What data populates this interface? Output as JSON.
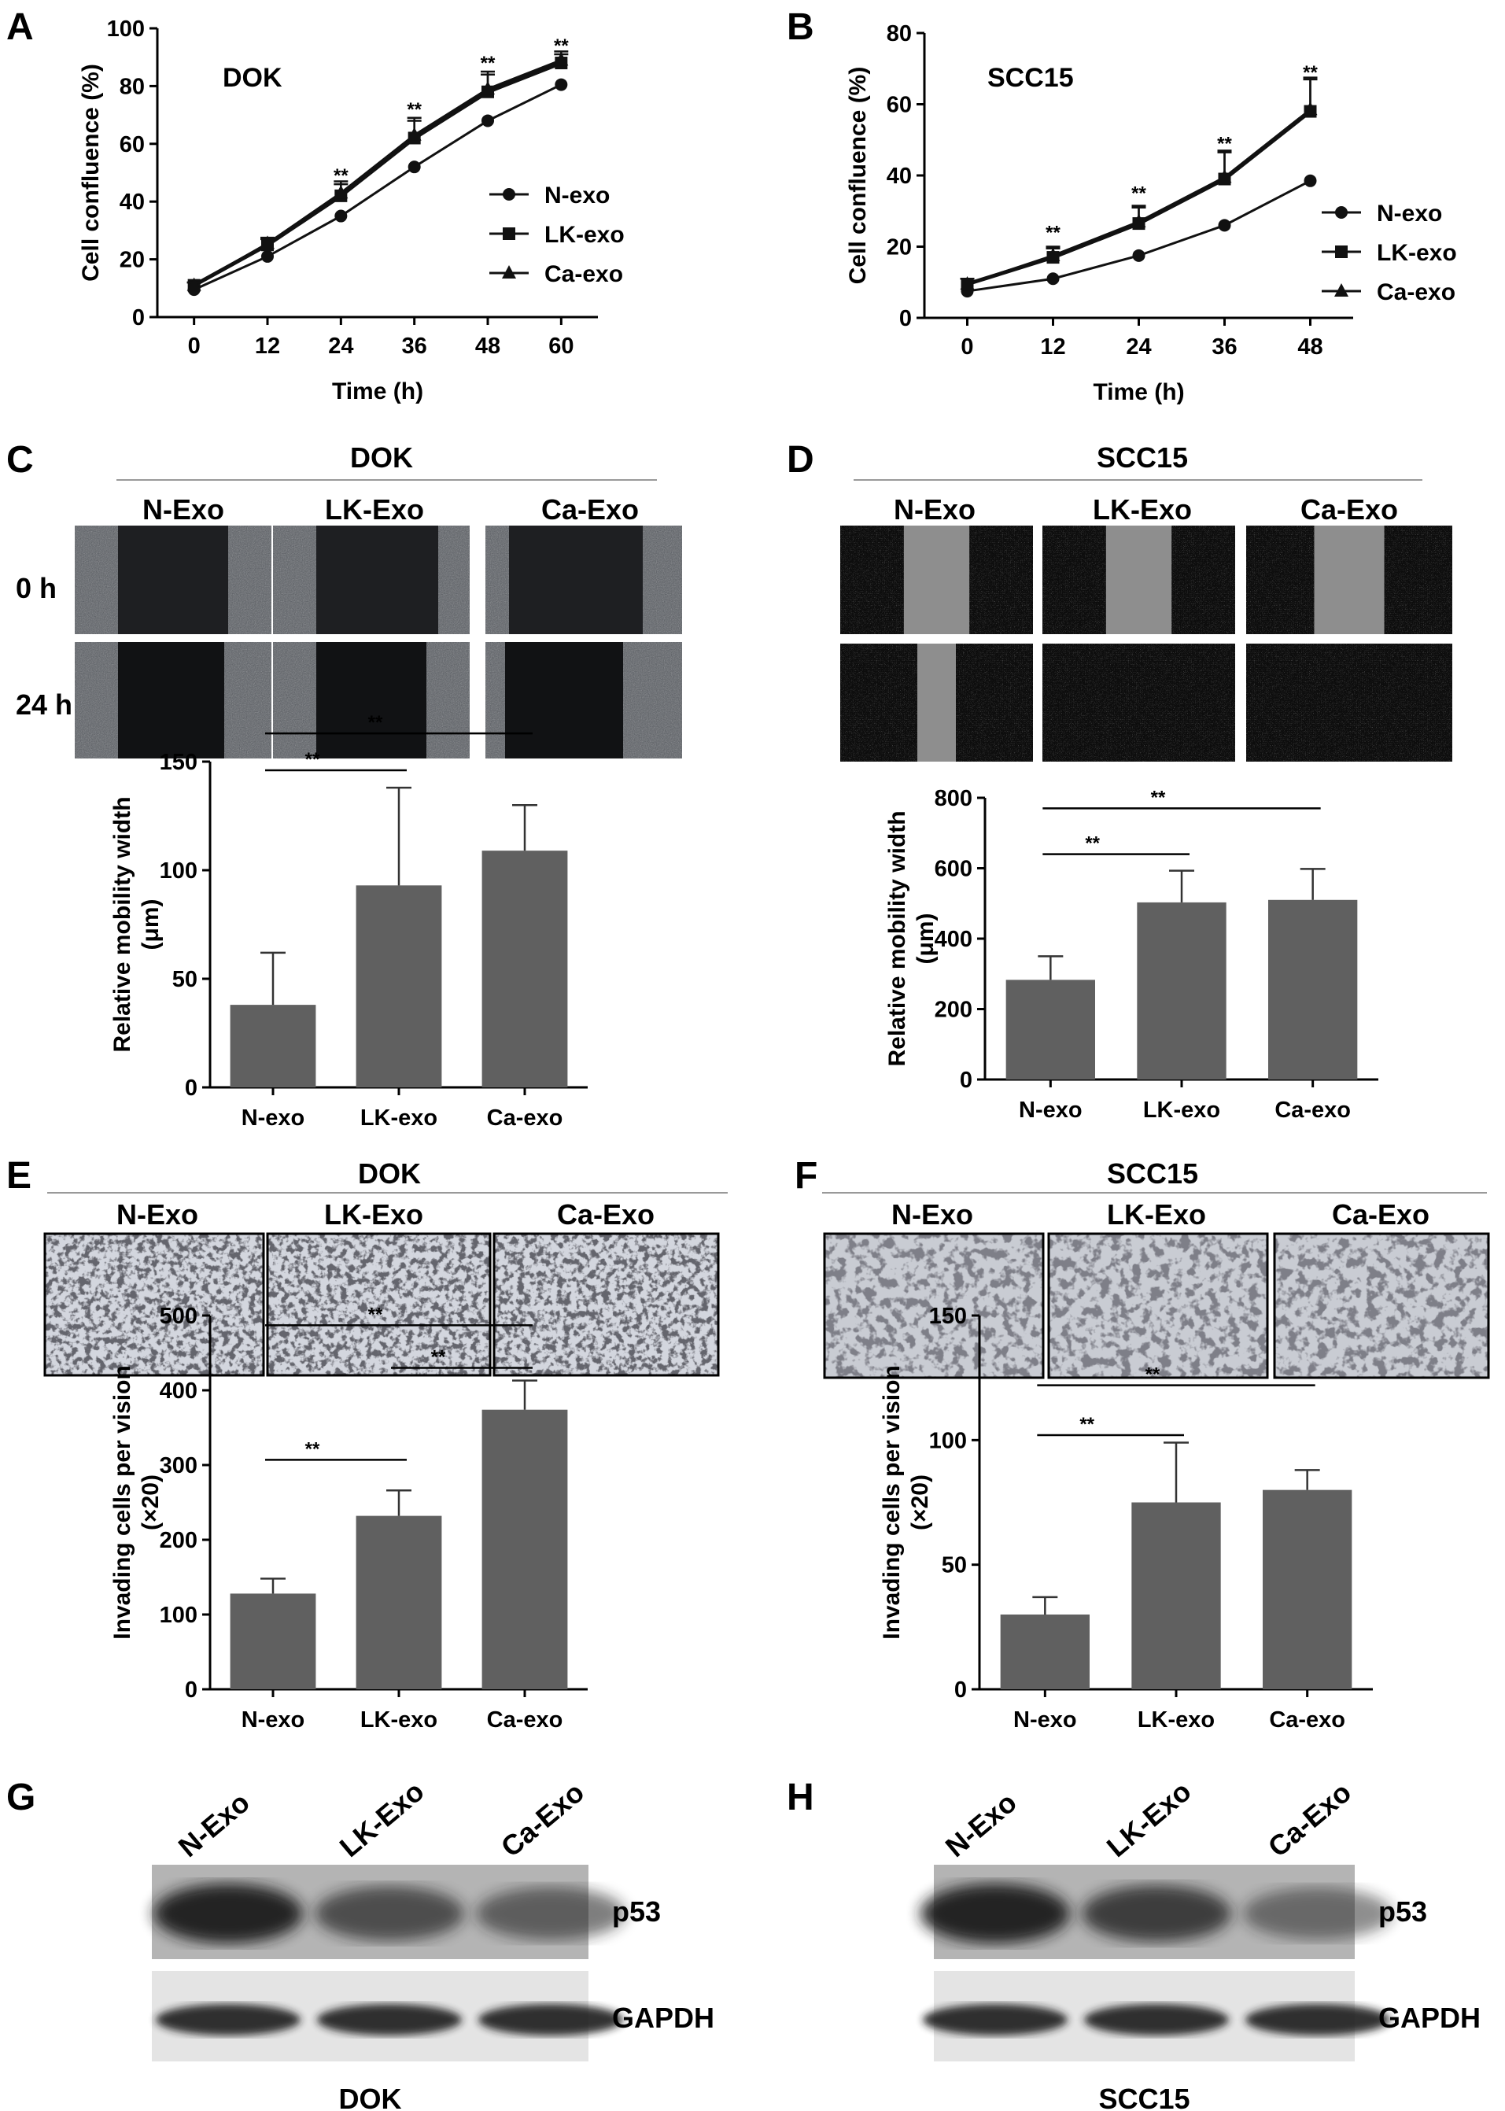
{
  "panels": {
    "A": "A",
    "B": "B",
    "C": "C",
    "D": "D",
    "E": "E",
    "F": "F",
    "G": "G",
    "H": "H"
  },
  "colors": {
    "bar": "#606060",
    "line": "#111111",
    "gel_bg": "#b8b8b8",
    "band": "#1a1a1a"
  },
  "chart_data": [
    {
      "id": "A",
      "type": "line",
      "title": "DOK",
      "xlabel": "Time (h)",
      "ylabel": "Cell confluence (%)",
      "x": [
        0,
        12,
        24,
        36,
        48,
        60
      ],
      "xlim": [
        -6,
        66
      ],
      "ylim": [
        0,
        100
      ],
      "yticks": [
        0,
        20,
        40,
        60,
        80,
        100
      ],
      "series": [
        {
          "name": "N-exo",
          "marker": "circle",
          "values": [
            9.5,
            21,
            35,
            52,
            68,
            80.5
          ],
          "err": [
            1,
            1.5,
            1.5,
            1.5,
            2,
            2
          ]
        },
        {
          "name": "LK-exo",
          "marker": "square",
          "values": [
            11,
            25,
            42,
            62,
            78,
            88
          ],
          "err": [
            1,
            2,
            4,
            6,
            6,
            3
          ]
        },
        {
          "name": "Ca-exo",
          "marker": "triangle",
          "values": [
            11,
            25.5,
            43,
            63,
            79,
            89
          ],
          "err": [
            1,
            2,
            4,
            6,
            6,
            3
          ]
        }
      ],
      "annotations": [
        {
          "x": 24,
          "y": 49,
          "text": "**"
        },
        {
          "x": 36,
          "y": 72,
          "text": "**"
        },
        {
          "x": 48,
          "y": 88,
          "text": "**"
        },
        {
          "x": 60,
          "y": 94,
          "text": "**"
        }
      ],
      "legend": "right"
    },
    {
      "id": "B",
      "type": "line",
      "title": "SCC15",
      "xlabel": "Time (h)",
      "ylabel": "Cell confluence (%)",
      "x": [
        0,
        12,
        24,
        36,
        48
      ],
      "xlim": [
        -6,
        54
      ],
      "ylim": [
        0,
        80
      ],
      "yticks": [
        0,
        20,
        40,
        60,
        80
      ],
      "series": [
        {
          "name": "N-exo",
          "marker": "circle",
          "values": [
            7.5,
            11,
            17.5,
            26,
            38.5
          ],
          "err": [
            1,
            1,
            1.5,
            4.5,
            5.5
          ]
        },
        {
          "name": "LK-exo",
          "marker": "square",
          "values": [
            9.5,
            17,
            26.5,
            39,
            58
          ],
          "err": [
            1.5,
            2.5,
            4.5,
            7.5,
            9
          ]
        },
        {
          "name": "Ca-exo",
          "marker": "triangle",
          "values": [
            9.5,
            17.5,
            27,
            39.5,
            58.5
          ],
          "err": [
            1.5,
            2.5,
            4.5,
            7.5,
            9
          ]
        }
      ],
      "annotations": [
        {
          "x": 12,
          "y": 24,
          "text": "**"
        },
        {
          "x": 24,
          "y": 35,
          "text": "**"
        },
        {
          "x": 36,
          "y": 49,
          "text": "**"
        },
        {
          "x": 48,
          "y": 69,
          "text": "**"
        }
      ],
      "legend": "right"
    },
    {
      "id": "C",
      "type": "bar",
      "title": "",
      "xlabel": "",
      "ylabel_lines": [
        "Relative mobility width",
        "(μm)"
      ],
      "categories": [
        "N-exo",
        "LK-exo",
        "Ca-exo"
      ],
      "values": [
        38,
        93,
        109
      ],
      "err": [
        24,
        45,
        21
      ],
      "ylim": [
        0,
        150
      ],
      "yticks": [
        0,
        50,
        100,
        150
      ],
      "brackets": [
        {
          "from": 0,
          "to": 1,
          "y": 146,
          "text": "**"
        },
        {
          "from": 0,
          "to": 2,
          "y": 163,
          "text": "**"
        }
      ]
    },
    {
      "id": "D",
      "type": "bar",
      "title": "",
      "xlabel": "",
      "ylabel_lines": [
        "Relative mobility width",
        "(μm)"
      ],
      "categories": [
        "N-exo",
        "LK-exo",
        "Ca-exo"
      ],
      "values": [
        283,
        503,
        510
      ],
      "err": [
        67,
        90,
        88
      ],
      "ylim": [
        0,
        800
      ],
      "yticks": [
        0,
        200,
        400,
        600,
        800
      ],
      "brackets": [
        {
          "from": 0,
          "to": 1,
          "y": 640,
          "text": "**"
        },
        {
          "from": 0,
          "to": 2,
          "y": 770,
          "text": "**"
        }
      ]
    },
    {
      "id": "E",
      "type": "bar",
      "title": "",
      "xlabel": "",
      "ylabel_lines": [
        "Invading cells per vision",
        "(×20)"
      ],
      "categories": [
        "N-exo",
        "LK-exo",
        "Ca-exo"
      ],
      "values": [
        128,
        232,
        374
      ],
      "err": [
        20,
        34,
        39
      ],
      "ylim": [
        0,
        500
      ],
      "yticks": [
        0,
        100,
        200,
        300,
        400,
        500
      ],
      "brackets": [
        {
          "from": 0,
          "to": 1,
          "y": 307,
          "text": "**"
        },
        {
          "from": 1,
          "to": 2,
          "y": 430,
          "text": "**"
        },
        {
          "from": 0,
          "to": 2,
          "y": 487,
          "text": "**"
        }
      ]
    },
    {
      "id": "F",
      "type": "bar",
      "title": "",
      "xlabel": "",
      "ylabel_lines": [
        "Invading cells per vision",
        "(×20)"
      ],
      "categories": [
        "N-exo",
        "LK-exo",
        "Ca-exo"
      ],
      "values": [
        30,
        75,
        80
      ],
      "err": [
        7,
        24,
        8
      ],
      "ylim": [
        0,
        150
      ],
      "yticks": [
        0,
        50,
        100,
        150
      ],
      "brackets": [
        {
          "from": 0,
          "to": 1,
          "y": 102,
          "text": "**"
        },
        {
          "from": 0,
          "to": 2,
          "y": 122,
          "text": "**"
        }
      ]
    }
  ],
  "micrographs": {
    "C": {
      "title": "DOK",
      "columns": [
        "N-Exo",
        "LK-Exo",
        "Ca-Exo"
      ],
      "rows": [
        "0 h",
        "24 h"
      ]
    },
    "D": {
      "title": "SCC15",
      "columns": [
        "N-Exo",
        "LK-Exo",
        "Ca-Exo"
      ]
    },
    "E": {
      "title": "DOK",
      "columns": [
        "N-Exo",
        "LK-Exo",
        "Ca-Exo"
      ]
    },
    "F": {
      "title": "SCC15",
      "columns": [
        "N-Exo",
        "LK-Exo",
        "Ca-Exo"
      ]
    }
  },
  "blots": {
    "G": {
      "lanes": [
        "N-Exo",
        "LK-Exo",
        "Ca-Exo"
      ],
      "bands": [
        "p53",
        "GAPDH"
      ],
      "cell_line": "DOK",
      "p53_intensity": [
        1.0,
        0.6,
        0.45
      ],
      "gapdh_intensity": [
        1.0,
        1.0,
        1.0
      ]
    },
    "H": {
      "lanes": [
        "N-Exo",
        "LK-Exo",
        "Ca-Exo"
      ],
      "bands": [
        "p53",
        "GAPDH"
      ],
      "cell_line": "SCC15",
      "p53_intensity": [
        1.0,
        0.75,
        0.35
      ],
      "gapdh_intensity": [
        1.0,
        1.0,
        1.0
      ]
    }
  }
}
